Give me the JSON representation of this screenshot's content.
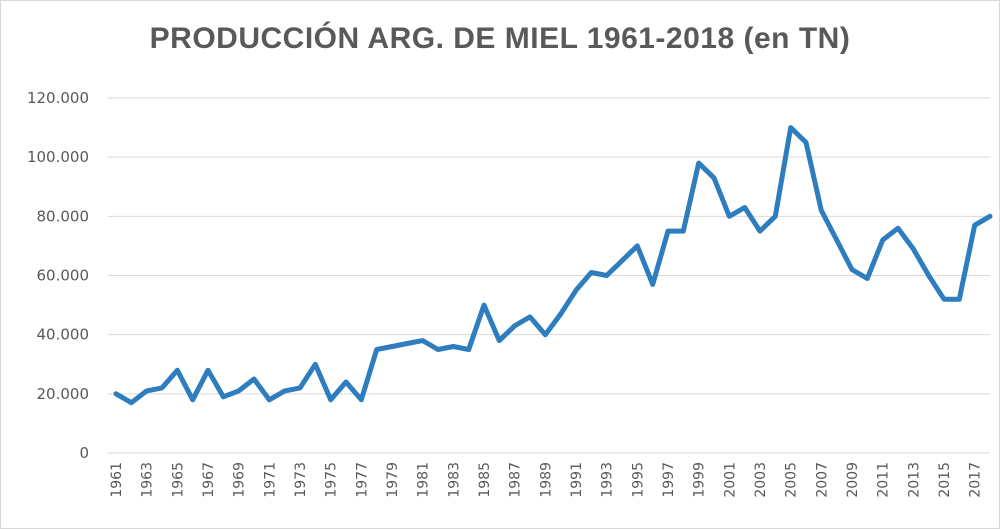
{
  "chart_data": {
    "type": "line",
    "title": "PRODUCCIÓN ARG. DE MIEL 1961-2018 (en TN)",
    "xlabel": "",
    "ylabel": "",
    "ylim": [
      0,
      120000
    ],
    "yticks": [
      "0",
      "20.000",
      "40.000",
      "60.000",
      "80.000",
      "100.000",
      "120.000"
    ],
    "x_tick_labels": [
      "1961",
      "1963",
      "1965",
      "1967",
      "1969",
      "1971",
      "1973",
      "1975",
      "1977",
      "1979",
      "1981",
      "1983",
      "1985",
      "1987",
      "1989",
      "1991",
      "1993",
      "1995",
      "1997",
      "1999",
      "2001",
      "2003",
      "2005",
      "2007",
      "2009",
      "2011",
      "2013",
      "2015",
      "2017"
    ],
    "grid": true,
    "legend": "none",
    "line_color": "#2e7dbf",
    "grid_color": "#d9d9d9",
    "series": [
      {
        "x": [
          1961,
          1962,
          1963,
          1964,
          1965,
          1966,
          1967,
          1968,
          1969,
          1970,
          1971,
          1972,
          1973,
          1974,
          1975,
          1976,
          1977,
          1978,
          1979,
          1980,
          1981,
          1982,
          1983,
          1984,
          1985,
          1986,
          1987,
          1988,
          1989,
          1990,
          1991,
          1992,
          1993,
          1994,
          1995,
          1996,
          1997,
          1998,
          1999,
          2000,
          2001,
          2002,
          2003,
          2004,
          2005,
          2006,
          2007,
          2008,
          2009,
          2010,
          2011,
          2012,
          2013,
          2014,
          2015,
          2016,
          2017,
          2018
        ],
        "values": [
          20000,
          17000,
          21000,
          22000,
          28000,
          18000,
          28000,
          19000,
          21000,
          25000,
          18000,
          21000,
          22000,
          30000,
          18000,
          24000,
          18000,
          35000,
          36000,
          37000,
          38000,
          35000,
          36000,
          35000,
          50000,
          38000,
          43000,
          46000,
          40000,
          47000,
          55000,
          61000,
          60000,
          65000,
          70000,
          57000,
          75000,
          75000,
          98000,
          93000,
          80000,
          83000,
          75000,
          80000,
          110000,
          105000,
          82000,
          72000,
          62000,
          59000,
          72000,
          76000,
          69000,
          60000,
          52000,
          52000,
          77000,
          80000
        ]
      }
    ]
  }
}
